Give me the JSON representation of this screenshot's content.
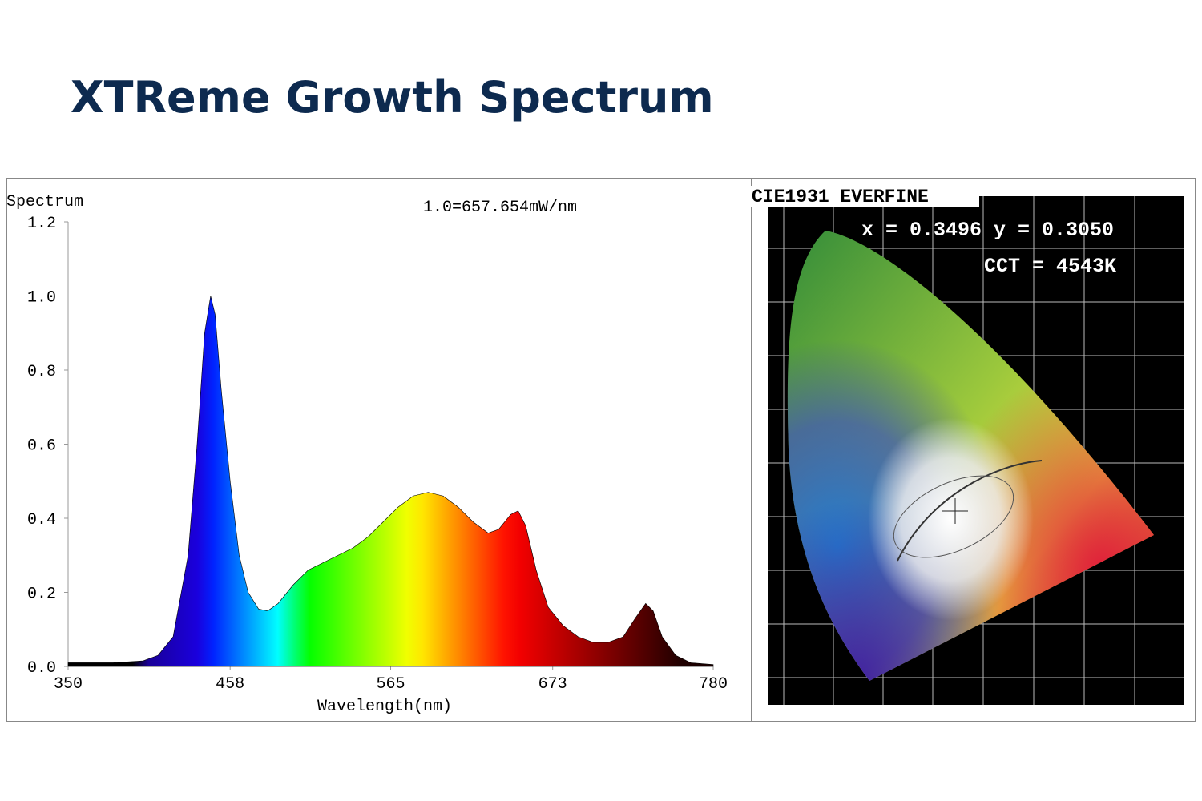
{
  "header": {
    "title": "XTReme Growth Spectrum"
  },
  "chart_data": {
    "type": "area",
    "y_label": "Spectrum",
    "x_label": "Wavelength(nm)",
    "annotation": "1.0=657.654mW/nm",
    "x": [
      350,
      360,
      380,
      400,
      410,
      420,
      430,
      436,
      441,
      445,
      448,
      452,
      458,
      464,
      470,
      477,
      483,
      490,
      500,
      510,
      520,
      530,
      540,
      550,
      560,
      570,
      580,
      590,
      600,
      610,
      620,
      630,
      637,
      645,
      650,
      655,
      662,
      670,
      680,
      690,
      700,
      710,
      720,
      728,
      735,
      740,
      746,
      755,
      765,
      780
    ],
    "values": [
      0.01,
      0.01,
      0.01,
      0.015,
      0.03,
      0.08,
      0.3,
      0.6,
      0.9,
      1.0,
      0.95,
      0.75,
      0.5,
      0.3,
      0.2,
      0.155,
      0.15,
      0.17,
      0.22,
      0.26,
      0.28,
      0.3,
      0.32,
      0.35,
      0.39,
      0.43,
      0.46,
      0.47,
      0.46,
      0.43,
      0.39,
      0.36,
      0.37,
      0.41,
      0.42,
      0.38,
      0.26,
      0.16,
      0.11,
      0.08,
      0.065,
      0.065,
      0.08,
      0.13,
      0.17,
      0.15,
      0.08,
      0.03,
      0.01,
      0.005
    ],
    "xlim": [
      350,
      780
    ],
    "xticks": [
      350,
      458,
      565,
      673,
      780
    ],
    "ylim": [
      0,
      1.2
    ],
    "yticks": [
      {
        "value": 0,
        "label": "0.0"
      },
      0.2,
      0.4,
      0.6,
      0.8,
      {
        "value": 1,
        "label": "1.0"
      },
      1.2
    ]
  },
  "cie_panel": {
    "title": "CIE1931 EVERFINE",
    "coordinates": "x = 0.3496 y = 0.3050",
    "cct": "CCT = 4543K"
  }
}
